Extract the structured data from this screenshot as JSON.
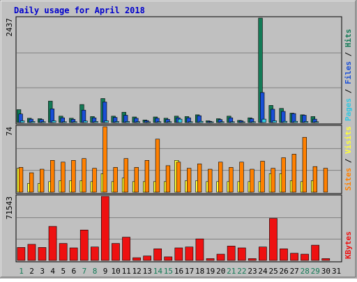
{
  "chart_data": {
    "type": "bar",
    "title": "Daily usage for April 2018",
    "days": [
      "1",
      "2",
      "3",
      "4",
      "5",
      "6",
      "7",
      "8",
      "9",
      "10",
      "11",
      "12",
      "13",
      "14",
      "15",
      "16",
      "17",
      "18",
      "19",
      "20",
      "21",
      "22",
      "23",
      "24",
      "25",
      "26",
      "27",
      "28",
      "29",
      "30",
      "31"
    ],
    "weekend_days": [
      1,
      7,
      8,
      14,
      15,
      21,
      22,
      28,
      29
    ],
    "colors": {
      "background": "#c0c0c0",
      "title": "#0000cc",
      "hits": "#137a56",
      "files": "#1a4fd6",
      "pages": "#33c7e0",
      "visits": "#ffff33",
      "sites": "#ff8000",
      "kbytes": "#ee1111",
      "weekday_label": "#000000",
      "weekend_label": "#137a56"
    },
    "panels": [
      {
        "max_label": "2437",
        "ylim": [
          0,
          2437
        ],
        "legend": [
          "Pages",
          "Files",
          "Hits"
        ],
        "series": [
          {
            "name": "Hits",
            "values": [
              300,
              100,
              90,
              500,
              150,
              100,
              420,
              140,
              560,
              150,
              240,
              130,
              60,
              130,
              100,
              150,
              140,
              180,
              40,
              90,
              150,
              50,
              110,
              2437,
              400,
              330,
              220,
              180,
              140,
              null,
              null
            ]
          },
          {
            "name": "Files",
            "values": [
              200,
              80,
              70,
              320,
              110,
              75,
              290,
              110,
              480,
              120,
              170,
              100,
              45,
              100,
              75,
              110,
              110,
              160,
              30,
              70,
              110,
              40,
              90,
              700,
              310,
              260,
              210,
              170,
              80,
              null,
              null
            ]
          },
          {
            "name": "Pages",
            "values": [
              40,
              25,
              20,
              40,
              20,
              20,
              35,
              25,
              40,
              25,
              25,
              20,
              10,
              20,
              20,
              80,
              20,
              30,
              10,
              20,
              20,
              15,
              20,
              80,
              40,
              30,
              30,
              25,
              20,
              null,
              null
            ]
          }
        ]
      },
      {
        "max_label": "74",
        "ylim": [
          0,
          74
        ],
        "legend": [
          "Sites",
          "Visits"
        ],
        "series": [
          {
            "name": "Visits",
            "values": [
              27,
              10,
              10,
              12,
              13,
              13,
              13,
              12,
              21,
              12,
              16,
              12,
              12,
              12,
              12,
              36,
              13,
              13,
              12,
              12,
              12,
              12,
              12,
              12,
              21,
              21,
              13,
              12,
              13,
              null,
              null
            ]
          },
          {
            "name": "Sites",
            "values": [
              28,
              22,
              26,
              36,
              34,
              36,
              38,
              27,
              74,
              28,
              38,
              28,
              36,
              60,
              30,
              34,
              27,
              32,
              26,
              34,
              28,
              34,
              26,
              35,
              27,
              39,
              43,
              62,
              29,
              27,
              null
            ]
          }
        ]
      },
      {
        "max_label": "71543",
        "ylim": [
          0,
          71543
        ],
        "legend": [
          "KBytes"
        ],
        "series": [
          {
            "name": "KBytes",
            "values": [
              14500,
              18000,
              14500,
              38000,
              19000,
              14000,
              34000,
              15000,
              71543,
              19000,
              26000,
              3000,
              5000,
              13000,
              4000,
              14000,
              15000,
              24000,
              2000,
              7000,
              16000,
              14000,
              2000,
              15000,
              47000,
              13000,
              8000,
              7000,
              17000,
              2000,
              null
            ]
          }
        ]
      }
    ]
  }
}
